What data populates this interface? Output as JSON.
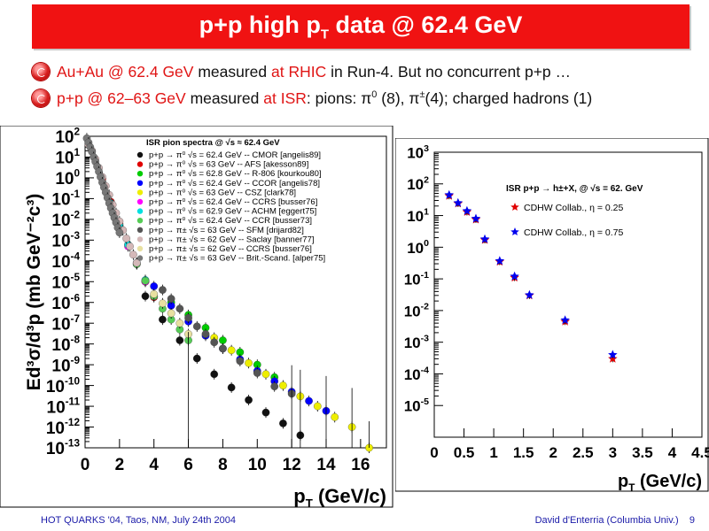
{
  "slide": {
    "title_main": "p+p high p",
    "title_sub": "T",
    "title_rest": " data @ 62.4 GeV",
    "bullets": [
      {
        "parts": [
          {
            "t": "Au+Au @ 62.4 GeV",
            "c": "red"
          },
          {
            "t": " measured ",
            "c": ""
          },
          {
            "t": "at RHIC",
            "c": "red"
          },
          {
            "t": " in Run-4. But no concurrent p+p …",
            "c": ""
          }
        ]
      },
      {
        "parts": [
          {
            "t": "p+p @ 62–63 GeV",
            "c": "red"
          },
          {
            "t": " measured ",
            "c": ""
          },
          {
            "t": "at ISR",
            "c": "red"
          },
          {
            "t": ": pions: π",
            "c": ""
          },
          {
            "t": "0",
            "c": "sup"
          },
          {
            "t": " (8), π",
            "c": ""
          },
          {
            "t": "±",
            "c": "sup"
          },
          {
            "t": "(4); charged hadrons (1)",
            "c": ""
          }
        ]
      }
    ],
    "footer_left": "HOT QUARKS '04, Taos, NM, July 24th 2004",
    "footer_right": "David d'Enterria (Columbia Univ.)",
    "page_number": "9"
  },
  "chart_data": [
    {
      "type": "scatter",
      "title": "ISR pion spectra @ √s ≈ 62.4 GeV",
      "xlabel": "pT (GeV/c)",
      "ylabel": "Ed³σ/d³p (mb GeV⁻²c³)",
      "xlim": [
        0,
        17.5
      ],
      "ylim": [
        1e-13,
        100
      ],
      "log_y": true,
      "x_ticks": [
        0,
        2,
        4,
        6,
        8,
        10,
        12,
        14,
        16
      ],
      "y_ticks": [
        -13,
        -12,
        -11,
        -10,
        -9,
        -8,
        -7,
        -6,
        -5,
        -4,
        -3,
        -2,
        -1,
        0,
        1,
        2
      ],
      "legend_position": "top-right",
      "series": [
        {
          "name": "p+p → π⁰ √s = 62.4 GeV -- CMOR [angelis89]",
          "color": "#111111",
          "x": [
            3.5,
            4.5,
            5.5,
            6.5,
            7.5,
            8.5,
            9.5,
            10.5,
            11.5,
            12.5
          ],
          "y": [
            2e-06,
            1.5e-07,
            1.5e-08,
            2e-09,
            3.5e-10,
            8e-11,
            2e-11,
            5e-12,
            1.5e-12,
            4e-13
          ]
        },
        {
          "name": "p+p → π⁰ √s = 63 GeV -- AFS [akesson89]",
          "color": "#e00000",
          "x": [
            1.0,
            1.5,
            2.0,
            2.5,
            3.0,
            3.5,
            4.0
          ],
          "y": [
            0.9,
            0.07,
            0.006,
            0.0006,
            7e-05,
            1e-05,
            1.8e-06
          ]
        },
        {
          "name": "p+p → π⁰ √s = 62.8 GeV -- R-806 [kourkou80]",
          "color": "#00cc00",
          "x": [
            5.0,
            6.0,
            7.0,
            8.0,
            9.0,
            10.0,
            11.0
          ],
          "y": [
            1e-06,
            2.5e-07,
            6e-08,
            1.5e-08,
            4e-09,
            1e-09,
            2.5e-10
          ]
        },
        {
          "name": "p+p → π⁰ √s = 62.4 GeV -- CCOR [angelis78]",
          "color": "#0000ff",
          "x": [
            3.0,
            4.0,
            5.0,
            6.0,
            7.0,
            8.0,
            9.0,
            10.0,
            11.0,
            12.0,
            13.0,
            14.0
          ],
          "y": [
            8e-05,
            6e-06,
            7e-07,
            1.2e-07,
            2.5e-08,
            6e-09,
            1.8e-09,
            5e-10,
            1.6e-10,
            5e-11,
            1.8e-11,
            6e-12
          ]
        },
        {
          "name": "p+p → π⁰ √s = 63 GeV -- CSZ [clark78]",
          "color": "#eeee00",
          "x": [
            7.5,
            8.5,
            9.5,
            10.5,
            11.5,
            12.5,
            13.5,
            14.5,
            15.5,
            16.5
          ],
          "y": [
            2e-08,
            5e-09,
            1.2e-09,
            3.5e-10,
            1e-10,
            3e-11,
            1e-11,
            3e-12,
            1e-12,
            1e-13
          ]
        },
        {
          "name": "p+p → π⁰ √s = 62.4 GeV -- CCRS [busser76]",
          "color": "#ff00ff",
          "x": [
            1.5,
            2.0,
            2.5,
            3.0,
            3.5,
            4.0
          ],
          "y": [
            0.05,
            0.004,
            0.0005,
            7e-05,
            1e-05,
            2e-06
          ]
        },
        {
          "name": "p+p → π⁰ √s = 62.9 GeV -- ACHM [eggert75]",
          "color": "#00e0e0",
          "x": [
            1.5,
            2.0,
            2.5,
            3.0,
            3.5
          ],
          "y": [
            0.06,
            0.005,
            0.0006,
            8e-05,
            1.2e-05
          ]
        },
        {
          "name": "p+p → π⁰ √s = 62.4 GeV -- CCR [busser73]",
          "color": "#55cc55",
          "x": [
            3.0,
            3.5,
            4.0,
            4.5,
            5.0,
            5.5,
            6.0
          ],
          "y": [
            7e-05,
            1.1e-05,
            2e-06,
            5e-07,
            1.5e-07,
            5e-08,
            1.5e-08
          ]
        },
        {
          "name": "p+p → π± √s = 63 GeV -- SFM [drijard82]",
          "color": "#555555",
          "x": [
            4.5,
            5.0,
            5.5,
            6.0,
            6.5,
            7.0,
            7.5,
            8.0,
            9.0,
            10.0,
            11.0,
            12.0
          ],
          "y": [
            4e-06,
            1.5e-06,
            5e-07,
            1.8e-07,
            7e-08,
            3e-08,
            1.2e-08,
            6e-09,
            1.5e-09,
            4e-10,
            9e-11,
            4e-11
          ]
        },
        {
          "name": "p+p → π± √s = 62 GeV -- Saclay [banner77]",
          "color": "#d4b8b8",
          "x": [
            0.2,
            0.4,
            0.6,
            0.8,
            1.0,
            1.2,
            1.4,
            1.6,
            1.8,
            2.0,
            2.2,
            2.4,
            2.6,
            2.8,
            3.0
          ],
          "y": [
            40,
            20,
            8,
            3,
            1.1,
            0.4,
            0.15,
            0.05,
            0.02,
            0.008,
            0.003,
            0.0012,
            0.0005,
            0.0002,
            8e-05
          ]
        },
        {
          "name": "p+p → π± √s = 62 GeV -- CCRS [busser76]",
          "color": "#e8e0a0",
          "x": [
            4.0,
            4.5,
            5.0,
            5.5,
            6.0
          ],
          "y": [
            2.5e-06,
            9e-07,
            3e-07,
            1e-07,
            3e-08
          ]
        },
        {
          "name": "p+p → π± √s = 63 GeV -- Brit.-Scand. [alper75]",
          "color": "#777777",
          "x": [
            0.1,
            0.2,
            0.3,
            0.4,
            0.5,
            0.6,
            0.7,
            0.8,
            0.9,
            1.0,
            1.1,
            1.2,
            1.3,
            1.4,
            1.5,
            1.6,
            1.7,
            1.8,
            1.9,
            2.0
          ],
          "y": [
            80,
            50,
            30,
            18,
            10,
            6,
            3.5,
            2,
            1.1,
            0.6,
            0.35,
            0.2,
            0.11,
            0.06,
            0.035,
            0.02,
            0.012,
            0.007,
            0.004,
            0.0023
          ]
        }
      ]
    },
    {
      "type": "scatter",
      "title": "ISR p+p → h±+X, @ √s = 62. GeV",
      "xlabel": "pT (GeV/c)",
      "ylabel": "",
      "xlim": [
        0,
        4.5
      ],
      "ylim": [
        1e-06,
        1000
      ],
      "log_y": true,
      "x_ticks": [
        0,
        0.5,
        1,
        1.5,
        2,
        2.5,
        3,
        3.5,
        4,
        4.5
      ],
      "y_ticks": [
        -5,
        -4,
        -3,
        -2,
        -1,
        0,
        1,
        2,
        3
      ],
      "legend_position": "top-right",
      "series": [
        {
          "name": "CDHW Collab., η = 0.25",
          "color": "#e00000",
          "marker": "star",
          "x": [
            0.25,
            0.4,
            0.55,
            0.7,
            0.85,
            1.1,
            1.35,
            1.6,
            2.2,
            3.0
          ],
          "y": [
            42,
            24,
            13,
            7.5,
            1.7,
            0.35,
            0.11,
            0.03,
            0.0045,
            0.0003
          ]
        },
        {
          "name": "CDHW Collab., η = 0.75",
          "color": "#0000ee",
          "marker": "star",
          "x": [
            0.25,
            0.4,
            0.55,
            0.7,
            0.85,
            1.1,
            1.35,
            1.6,
            2.2,
            3.0
          ],
          "y": [
            45,
            25,
            14,
            8,
            1.8,
            0.37,
            0.12,
            0.031,
            0.005,
            0.0004
          ]
        }
      ]
    }
  ]
}
